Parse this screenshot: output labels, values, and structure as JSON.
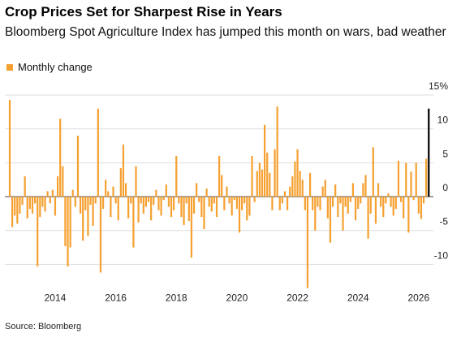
{
  "chart_data": {
    "type": "bar",
    "title": "Crop Prices Set for Sharpest Rise in Years",
    "subtitle": "Bloomberg Spot Agriculture Index has jumped this month on wars, bad weather",
    "source": "Source: Bloomberg",
    "categories": [
      null,
      null,
      null,
      null,
      null,
      null,
      null,
      null,
      null,
      null,
      null,
      null,
      null,
      null,
      null,
      null,
      null,
      null,
      "2014",
      null,
      null,
      null,
      null,
      null,
      null,
      null,
      null,
      null,
      null,
      null,
      null,
      null,
      null,
      null,
      null,
      null,
      null,
      null,
      null,
      null,
      null,
      null,
      "2016",
      null,
      null,
      null,
      null,
      null,
      null,
      null,
      null,
      null,
      null,
      null,
      null,
      null,
      null,
      null,
      null,
      null,
      null,
      null,
      null,
      null,
      null,
      null,
      "2018",
      null,
      null,
      null,
      null,
      null,
      null,
      null,
      null,
      null,
      null,
      null,
      null,
      null,
      null,
      null,
      null,
      null,
      null,
      null,
      null,
      null,
      null,
      null,
      "2020",
      null,
      null,
      null,
      null,
      null,
      null,
      null,
      null,
      null,
      null,
      null,
      null,
      null,
      null,
      null,
      null,
      null,
      null,
      null,
      null,
      null,
      null,
      null,
      "2022",
      null,
      null,
      null,
      null,
      null,
      null,
      null,
      null,
      null,
      null,
      null,
      null,
      null,
      null,
      null,
      null,
      null,
      null,
      null,
      null,
      null,
      null,
      null,
      "2024",
      null,
      null,
      null,
      null,
      null,
      null,
      null,
      null,
      null,
      null,
      null,
      null,
      null,
      null,
      null,
      null,
      null,
      null,
      null,
      null,
      null,
      null,
      null,
      "2026",
      null,
      null,
      null,
      null
    ],
    "series": [
      {
        "name": "Monthly change",
        "color": "#f5a030",
        "values": [
          14.3,
          -4.5,
          -2.8,
          -4.0,
          -2.5,
          -1.2,
          3.0,
          -3.2,
          -1.8,
          -2.5,
          -1.0,
          -10.3,
          -3.0,
          -1.5,
          -2.2,
          0.8,
          -1.0,
          1.0,
          -2.8,
          3.0,
          11.5,
          4.5,
          -7.3,
          -10.3,
          -7.5,
          1.0,
          -1.5,
          9.0,
          -2.5,
          -6.5,
          -2.0,
          -5.8,
          -1.2,
          -4.3,
          -1.0,
          13.0,
          -11.2,
          -1.8,
          2.5,
          0.8,
          -3.0,
          1.5,
          -1.0,
          -3.5,
          4.2,
          7.7,
          2.0,
          -3.2,
          -1.0,
          -7.5,
          4.5,
          -3.8,
          -1.0,
          -2.5,
          -1.5,
          -0.8,
          -3.5,
          -1.2,
          1.0,
          -2.0,
          -2.8,
          -0.5,
          1.8,
          -1.5,
          -3.0,
          -2.0,
          6.0,
          -1.0,
          -3.0,
          -4.2,
          -1.0,
          -3.6,
          -9.0,
          -2.5,
          2.0,
          -0.8,
          -3.0,
          -4.8,
          1.2,
          -1.5,
          -2.2,
          -1.0,
          -3.0,
          6.0,
          3.2,
          -2.0,
          1.5,
          -1.0,
          -2.8,
          -0.5,
          -1.8,
          -5.3,
          -2.0,
          -1.0,
          -3.5,
          -2.8,
          6.0,
          -0.8,
          3.8,
          5.0,
          4.0,
          10.6,
          6.5,
          3.5,
          -2.0,
          7.0,
          13.3,
          -2.0,
          -1.0,
          0.8,
          -2.0,
          1.5,
          3.0,
          5.2,
          7.0,
          3.8,
          2.5,
          -2.0,
          -13.5,
          3.5,
          -2.0,
          -5.0,
          -1.5,
          -2.0,
          1.5,
          2.5,
          -3.2,
          -6.8,
          -1.5,
          1.8,
          -3.0,
          -1.0,
          -5.0,
          -1.5,
          -2.5,
          -0.8,
          2.0,
          -3.5,
          -1.8,
          -1.0,
          2.0,
          3.2,
          -6.2,
          -2.5,
          7.3,
          -4.0,
          2.0,
          -1.5,
          -3.0,
          -1.0,
          0.5,
          -1.5,
          -2.8,
          -1.8,
          5.3,
          -0.8,
          -3.2,
          5.0,
          -5.3,
          3.7,
          -0.5,
          5.0,
          -2.5,
          -3.3,
          -1.0,
          5.6,
          13.0
        ]
      }
    ],
    "last_bar_color": "#000000",
    "ylim": [
      -13.5,
      15
    ],
    "yticks": [
      {
        "value": 15,
        "label": "15%"
      },
      10,
      5,
      0,
      -5,
      -10
    ],
    "grid": true
  }
}
